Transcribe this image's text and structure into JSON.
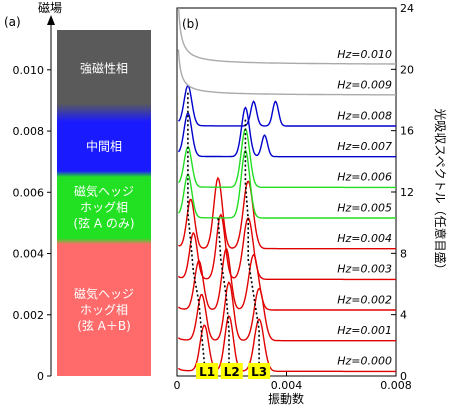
{
  "panel_a": {
    "label": "(a)",
    "axis_title": "磁場",
    "ticks": [
      "0",
      "0.002",
      "0.004",
      "0.006",
      "0.008",
      "0.010"
    ],
    "tick_values": [
      0,
      0.002,
      0.004,
      0.006,
      0.008,
      0.01
    ],
    "phases": [
      {
        "lines": [
          "強磁性相"
        ],
        "from": 0.0089,
        "to": 0.0112,
        "color": "#5a5a5a"
      },
      {
        "lines": [
          "中間相"
        ],
        "from": 0.0067,
        "to": 0.0083,
        "color": "#1a1aff"
      },
      {
        "lines": [
          "磁気ヘッジ",
          "ホッグ相",
          "(弦 A のみ)"
        ],
        "from": 0.0045,
        "to": 0.0065,
        "color": "#22e022"
      },
      {
        "lines": [
          "磁気ヘッジ",
          "ホッグ相",
          "(弦 A＋B)"
        ],
        "from": 0.0,
        "to": 0.0043,
        "color": "#ff6b6b"
      }
    ]
  },
  "chart_data": {
    "type": "line",
    "label": "(b)",
    "xlabel": "振動数",
    "ylabel": "光吸収スペクトル（任意目盛）",
    "xlim": [
      0,
      0.008
    ],
    "ylim": [
      0,
      24
    ],
    "x_ticks": [
      "0",
      "0.004",
      "0.008"
    ],
    "x_tick_values": [
      0,
      0.004,
      0.008
    ],
    "y_ticks": [
      "0",
      "4",
      "8",
      "12",
      "16",
      "20",
      "24"
    ],
    "y_tick_values": [
      0,
      4,
      8,
      12,
      16,
      20,
      24
    ],
    "colors": {
      "ferro": "#aaaaaa",
      "intermediate": "#0000cc",
      "phaseA": "#22dd22",
      "phaseAB": "#e00000"
    },
    "series": [
      {
        "name": "Hz=0.000",
        "label": "Hz=0.000",
        "offset": 0,
        "phase": "phaseAB",
        "peaks": [
          [
            0.001,
            3.0,
            0.00022
          ],
          [
            0.0019,
            3.6,
            0.00022
          ],
          [
            0.003,
            3.4,
            0.00025
          ]
        ],
        "tail": 0.4
      },
      {
        "name": "Hz=0.001",
        "label": "Hz=0.001",
        "offset": 2,
        "phase": "phaseAB",
        "peaks": [
          [
            0.0009,
            3.0,
            0.00022
          ],
          [
            0.0019,
            3.8,
            0.00022
          ],
          [
            0.003,
            3.4,
            0.00025
          ]
        ],
        "tail": 0.4
      },
      {
        "name": "Hz=0.002",
        "label": "Hz=0.002",
        "offset": 4,
        "phase": "phaseAB",
        "peaks": [
          [
            0.0008,
            3.2,
            0.00022
          ],
          [
            0.0018,
            4.0,
            0.00022
          ],
          [
            0.0028,
            3.6,
            0.00025
          ]
        ],
        "tail": 0.4
      },
      {
        "name": "Hz=0.003",
        "label": "Hz=0.003",
        "offset": 6,
        "phase": "phaseAB",
        "peaks": [
          [
            0.0006,
            3.0,
            0.0002
          ],
          [
            0.0016,
            4.2,
            0.00022
          ],
          [
            0.0026,
            4.0,
            0.00025
          ]
        ],
        "tail": 0.4
      },
      {
        "name": "Hz=0.004",
        "label": "Hz=0.004",
        "offset": 8,
        "phase": "phaseAB",
        "peaks": [
          [
            0.0005,
            3.2,
            0.0002
          ],
          [
            0.0015,
            4.6,
            0.00022
          ],
          [
            0.0026,
            4.4,
            0.00025
          ]
        ],
        "tail": 0.4
      },
      {
        "name": "Hz=0.005",
        "label": "Hz=0.005",
        "offset": 10,
        "phase": "phaseA",
        "peaks": [
          [
            0.0004,
            2.8,
            0.0002
          ],
          [
            0.0025,
            4.4,
            0.00022
          ]
        ],
        "tail": 0.4
      },
      {
        "name": "Hz=0.006",
        "label": "Hz=0.006",
        "offset": 12,
        "phase": "phaseA",
        "peaks": [
          [
            0.0004,
            2.6,
            0.0002
          ],
          [
            0.0025,
            3.8,
            0.00022
          ]
        ],
        "tail": 0.4
      },
      {
        "name": "Hz=0.007",
        "label": "Hz=0.007",
        "offset": 14,
        "phase": "intermediate",
        "peaks": [
          [
            0.0004,
            2.8,
            0.0002
          ],
          [
            0.0025,
            3.2,
            0.0002
          ],
          [
            0.0032,
            1.4,
            0.00015
          ]
        ],
        "tail": 0.4
      },
      {
        "name": "Hz=0.008",
        "label": "Hz=0.008",
        "offset": 16,
        "phase": "intermediate",
        "peaks": [
          [
            0.0004,
            2.6,
            0.0002
          ],
          [
            0.0028,
            1.6,
            0.00015
          ],
          [
            0.0036,
            1.6,
            0.00015
          ]
        ],
        "tail": 0.4
      },
      {
        "name": "Hz=0.009",
        "label": "Hz=0.009",
        "offset": 18,
        "phase": "ferro",
        "peaks": [],
        "tail": 6.0
      },
      {
        "name": "Hz=0.010",
        "label": "Hz=0.010",
        "offset": 20,
        "phase": "ferro",
        "peaks": [],
        "tail": 8.0
      }
    ],
    "dotted_guides": [
      [
        [
          0.001,
          0.8
        ],
        [
          0.0009,
          2.8
        ],
        [
          0.0008,
          4.8
        ],
        [
          0.0006,
          6.8
        ],
        [
          0.0005,
          8.8
        ],
        [
          0.0004,
          10.6
        ],
        [
          0.0004,
          12.4
        ],
        [
          0.0004,
          14.6
        ],
        [
          0.0004,
          16.4
        ],
        [
          0.0004,
          18.6
        ]
      ],
      [
        [
          0.0019,
          0.8
        ],
        [
          0.0019,
          2.9
        ],
        [
          0.0018,
          5.2
        ],
        [
          0.0016,
          7.6
        ],
        [
          0.0015,
          10.3
        ]
      ],
      [
        [
          0.003,
          0.8
        ],
        [
          0.003,
          3.0
        ],
        [
          0.0028,
          5.3
        ],
        [
          0.0026,
          7.6
        ],
        [
          0.0026,
          10.2
        ],
        [
          0.0025,
          12.6
        ],
        [
          0.0025,
          14.6
        ],
        [
          0.0025,
          16.8
        ]
      ]
    ],
    "peak_labels": [
      {
        "text": "L1",
        "x": 0.0011
      },
      {
        "text": "L2",
        "x": 0.002
      },
      {
        "text": "L3",
        "x": 0.003
      }
    ]
  }
}
